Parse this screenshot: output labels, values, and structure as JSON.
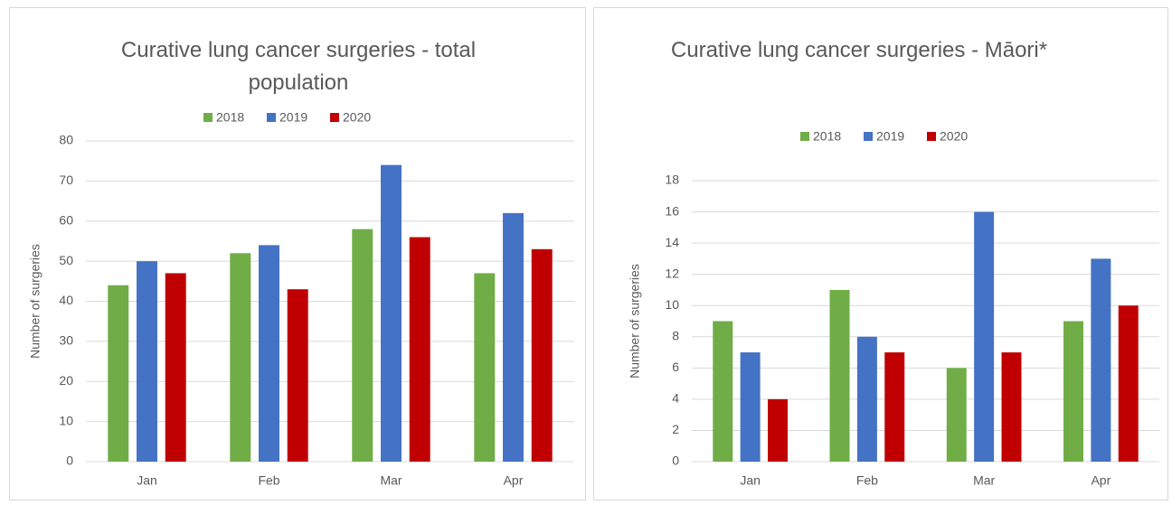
{
  "chart_data": [
    {
      "type": "bar",
      "title": "Curative lung cancer surgeries - total population",
      "y_label": "Number of surgeries",
      "categories": [
        "Jan",
        "Feb",
        "Mar",
        "Apr"
      ],
      "series": [
        {
          "name": "2018",
          "color": "#70ad47",
          "values": [
            44,
            52,
            58,
            47
          ]
        },
        {
          "name": "2019",
          "color": "#4472c4",
          "values": [
            50,
            54,
            74,
            62
          ]
        },
        {
          "name": "2020",
          "color": "#c00000",
          "values": [
            47,
            43,
            56,
            53
          ]
        }
      ],
      "ylim": [
        0,
        80
      ],
      "yticks": [
        0,
        10,
        20,
        30,
        40,
        50,
        60,
        70,
        80
      ],
      "grid": true,
      "legend": "top"
    },
    {
      "type": "bar",
      "title": "Curative lung cancer surgeries - Māori*",
      "y_label": "Number of surgeries",
      "categories": [
        "Jan",
        "Feb",
        "Mar",
        "Apr"
      ],
      "series": [
        {
          "name": "2018",
          "color": "#70ad47",
          "values": [
            9,
            11,
            6,
            9
          ]
        },
        {
          "name": "2019",
          "color": "#4472c4",
          "values": [
            7,
            8,
            16,
            13
          ]
        },
        {
          "name": "2020",
          "color": "#c00000",
          "values": [
            4,
            7,
            7,
            10
          ]
        }
      ],
      "ylim": [
        0,
        18
      ],
      "yticks": [
        0,
        2,
        4,
        6,
        8,
        10,
        12,
        14,
        16,
        18
      ],
      "grid": true,
      "legend": "top"
    }
  ]
}
